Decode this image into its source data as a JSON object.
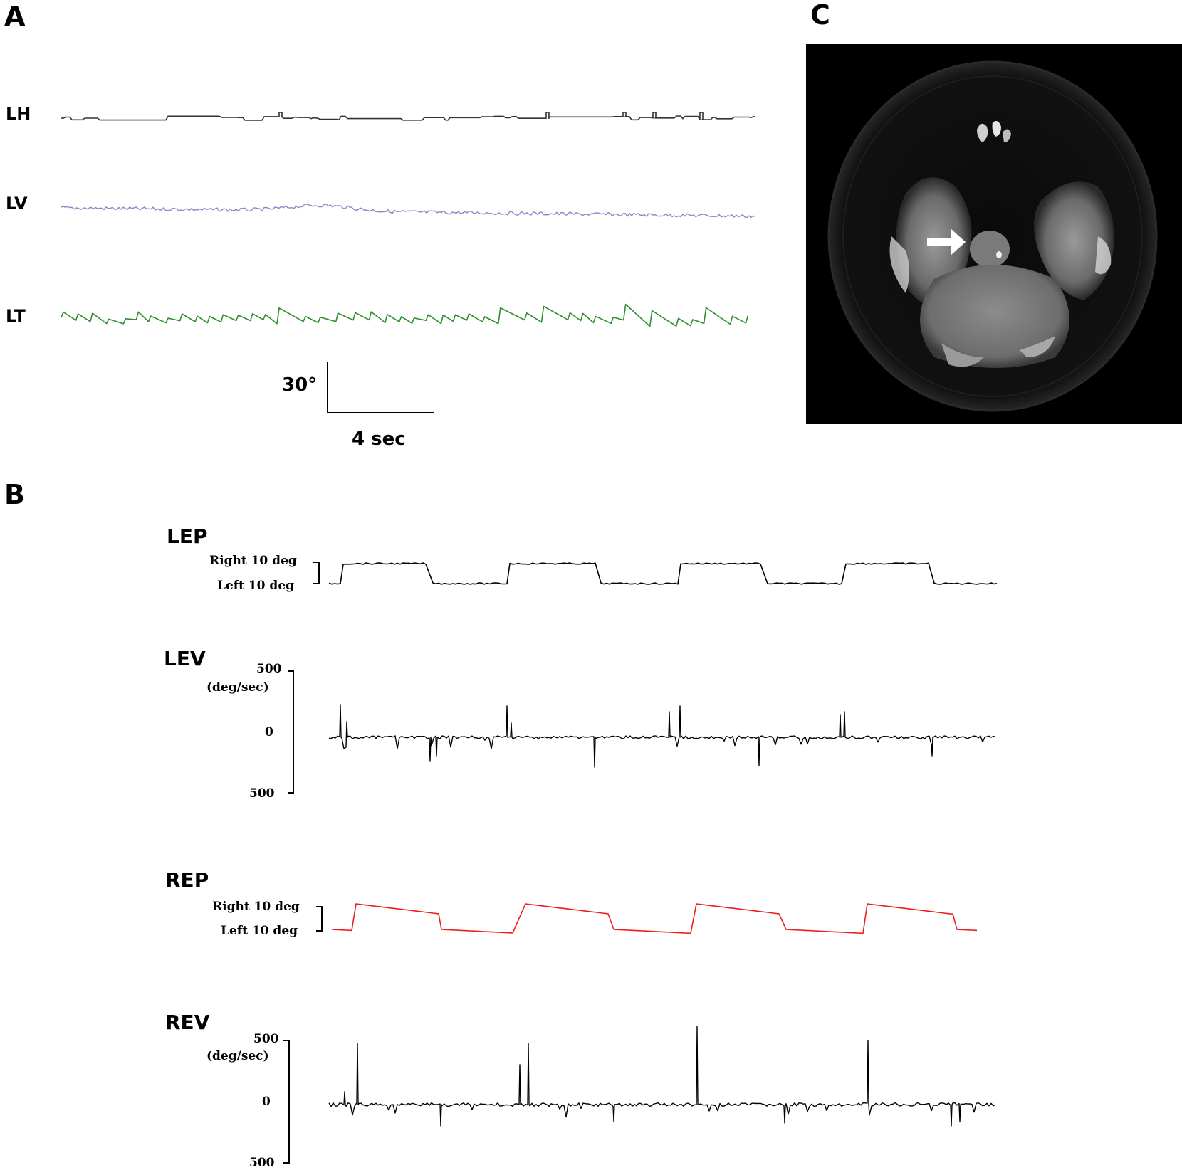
{
  "figure": {
    "panels": {
      "a": "A",
      "b": "B",
      "c": "C"
    },
    "panel_a": {
      "traces": [
        {
          "label": "LH",
          "color": "#333333"
        },
        {
          "label": "LV",
          "color": "#8c86c8"
        },
        {
          "label": "LT",
          "color": "#2f8f2f"
        }
      ],
      "scale_bar": {
        "amplitude": "30°",
        "time": "4 sec"
      }
    },
    "panel_b": {
      "lep": {
        "label": "LEP",
        "top": "Right 10 deg",
        "bottom": "Left 10 deg",
        "color": "#000000"
      },
      "lev": {
        "label": "LEV",
        "top": "500",
        "unit": "(deg/sec)",
        "zero": "0",
        "bottom": "500",
        "color": "#000000"
      },
      "rep": {
        "label": "REP",
        "top": "Right 10 deg",
        "bottom": "Left 10 deg",
        "color": "#ee1c1c"
      },
      "rev": {
        "label": "REV",
        "top": "500",
        "unit": "(deg/sec)",
        "zero": "0",
        "bottom": "500",
        "color": "#000000"
      }
    },
    "panel_c": {
      "image": "axial-brain-mri-dwi",
      "arrow_color": "#ffffff"
    }
  }
}
